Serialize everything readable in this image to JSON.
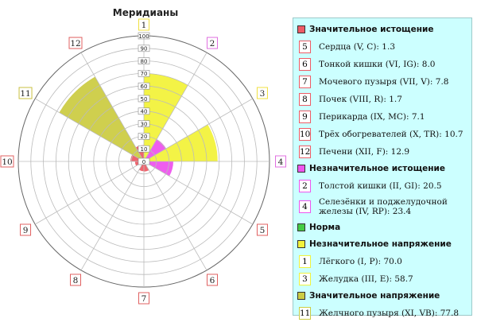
{
  "chart_data": {
    "type": "polar-bar",
    "title": "Меридианы",
    "radial_ticks": [
      "0",
      "10",
      "20",
      "30",
      "40",
      "50",
      "60",
      "70",
      "80",
      "90",
      "100"
    ],
    "rmax": 100,
    "categories": [
      "1",
      "2",
      "3",
      "4",
      "5",
      "6",
      "7",
      "8",
      "9",
      "10",
      "11",
      "12"
    ],
    "values": [
      70.0,
      20.5,
      58.7,
      23.4,
      1.3,
      8.0,
      7.8,
      1.7,
      7.1,
      10.7,
      77.8,
      12.9
    ],
    "point_colors": [
      "#f2f23c",
      "#ee55ee",
      "#f2f23c",
      "#ee55ee",
      "#ee5c66",
      "#ee5c66",
      "#ee5c66",
      "#ee5c66",
      "#ee5c66",
      "#ee5c66",
      "#cccc44",
      "#ee5c66"
    ],
    "label_border_colors": [
      "#f0e040",
      "#e070e0",
      "#f0e040",
      "#e070e0",
      "#e06060",
      "#e06060",
      "#e06060",
      "#e06060",
      "#e06060",
      "#e06060",
      "#c8c040",
      "#e06060"
    ]
  },
  "legend": {
    "groups": [
      {
        "label": "Значительное истощение",
        "color": "#ee5c66",
        "items": [
          {
            "num": "5",
            "text": "Сердца (V, C): 1.3"
          },
          {
            "num": "6",
            "text": "Тонкой кишки (VI, IG): 8.0"
          },
          {
            "num": "7",
            "text": "Мочевого пузыря (VII, V): 7.8"
          },
          {
            "num": "8",
            "text": "Почек (VIII, R): 1.7"
          },
          {
            "num": "9",
            "text": "Перикарда (IX, MC): 7.1"
          },
          {
            "num": "10",
            "text": "Трёх обогревателей (X, TR): 10.7"
          },
          {
            "num": "12",
            "text": "Печени (XII, F): 12.9"
          }
        ]
      },
      {
        "label": "Незначительное истощение",
        "color": "#ee55ee",
        "items": [
          {
            "num": "2",
            "text": "Толстой кишки (II, GI): 20.5"
          },
          {
            "num": "4",
            "text": "Селезёнки и поджелудочной железы (IV, RP): 23.4",
            "tall": true
          }
        ]
      },
      {
        "label": "Норма",
        "color": "#44cc44",
        "items": []
      },
      {
        "label": "Незначительное напряжение",
        "color": "#f2f23c",
        "items": [
          {
            "num": "1",
            "text": "Лёгкого (I, P): 70.0"
          },
          {
            "num": "3",
            "text": "Желудка (III, E): 58.7"
          }
        ]
      },
      {
        "label": "Значительное напряжение",
        "color": "#cccc44",
        "items": [
          {
            "num": "11",
            "text": "Желчного пузыря (XI, VB): 77.8"
          }
        ]
      }
    ]
  }
}
